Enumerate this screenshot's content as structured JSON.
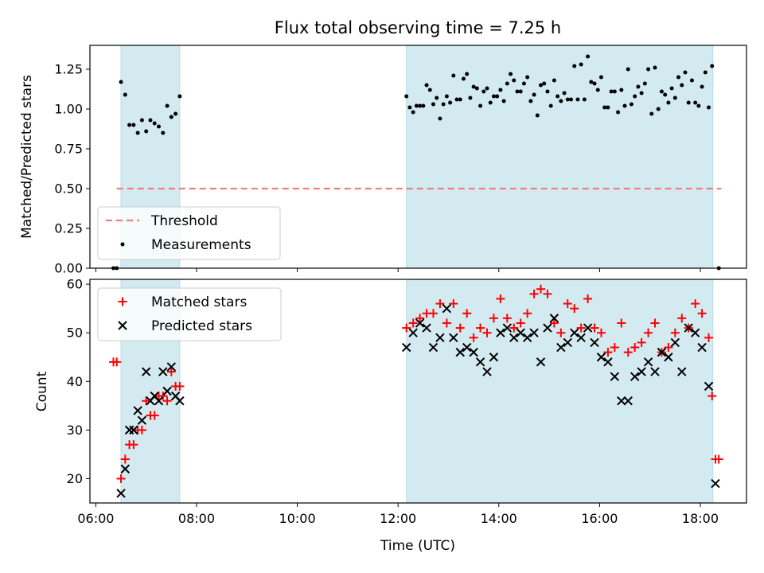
{
  "title": "Flux total observing time = 7.25 h",
  "xlabel": "Time (UTC)",
  "x_ticks": [
    "06:00",
    "08:00",
    "10:00",
    "12:00",
    "14:00",
    "16:00",
    "18:00"
  ],
  "colors": {
    "shade": "#d3eaf1",
    "threshold": "#f08080",
    "measurements": "#000000",
    "matched": "#ff0000",
    "predicted": "#000000"
  },
  "chart_data": [
    {
      "type": "scatter",
      "panel": "top",
      "ylabel": "Matched/Predicted stars",
      "xlim": [
        "05:53",
        "18:55"
      ],
      "ylim": [
        0,
        1.4
      ],
      "y_ticks": [
        "0.00",
        "0.25",
        "0.50",
        "0.75",
        "1.00",
        "1.25"
      ],
      "shaded_intervals": [
        [
          "06:30",
          "07:40"
        ],
        [
          "12:10",
          "18:15"
        ]
      ],
      "threshold": {
        "name": "Threshold",
        "value": 0.5,
        "x_range": [
          "06:25",
          "18:25"
        ]
      },
      "legend": {
        "position": "lower-left",
        "entries": [
          "Threshold",
          "Measurements"
        ]
      },
      "series": [
        {
          "name": "Measurements",
          "marker": "dot",
          "x": [
            "06:21",
            "06:25",
            "06:30",
            "06:35",
            "06:40",
            "06:45",
            "06:50",
            "06:55",
            "07:00",
            "07:05",
            "07:10",
            "07:15",
            "07:20",
            "07:25",
            "07:30",
            "07:35",
            "07:40",
            "12:10",
            "12:14",
            "12:18",
            "12:22",
            "12:26",
            "12:30",
            "12:34",
            "12:38",
            "12:42",
            "12:46",
            "12:50",
            "12:54",
            "12:58",
            "13:02",
            "13:06",
            "13:10",
            "13:14",
            "13:18",
            "13:22",
            "13:26",
            "13:30",
            "13:34",
            "13:38",
            "13:42",
            "13:46",
            "13:50",
            "13:54",
            "13:58",
            "14:02",
            "14:06",
            "14:10",
            "14:14",
            "14:18",
            "14:22",
            "14:26",
            "14:30",
            "14:34",
            "14:38",
            "14:42",
            "14:46",
            "14:50",
            "14:54",
            "14:58",
            "15:02",
            "15:06",
            "15:10",
            "15:14",
            "15:18",
            "15:22",
            "15:26",
            "15:30",
            "15:34",
            "15:38",
            "15:42",
            "15:46",
            "15:50",
            "15:54",
            "15:58",
            "16:02",
            "16:06",
            "16:10",
            "16:14",
            "16:18",
            "16:22",
            "16:26",
            "16:30",
            "16:34",
            "16:38",
            "16:42",
            "16:46",
            "16:50",
            "16:54",
            "16:58",
            "17:02",
            "17:06",
            "17:10",
            "17:14",
            "17:18",
            "17:22",
            "17:26",
            "17:30",
            "17:34",
            "17:38",
            "17:42",
            "17:46",
            "17:50",
            "17:54",
            "17:58",
            "18:02",
            "18:06",
            "18:10",
            "18:14",
            "18:22"
          ],
          "y": [
            0.0,
            0.0,
            1.17,
            1.09,
            0.9,
            0.9,
            0.85,
            0.93,
            0.86,
            0.93,
            0.91,
            0.89,
            0.85,
            1.02,
            0.95,
            0.97,
            1.08,
            1.08,
            1.01,
            0.98,
            1.02,
            1.02,
            1.02,
            1.15,
            1.12,
            1.03,
            1.07,
            0.94,
            1.03,
            1.08,
            1.04,
            1.21,
            1.06,
            1.06,
            1.19,
            1.22,
            1.07,
            1.14,
            1.13,
            1.02,
            1.11,
            1.13,
            1.04,
            1.08,
            1.08,
            1.12,
            1.05,
            1.16,
            1.22,
            1.18,
            1.11,
            1.11,
            1.16,
            1.2,
            1.05,
            1.09,
            0.96,
            1.15,
            1.16,
            1.11,
            1.02,
            1.18,
            1.08,
            1.05,
            1.1,
            1.06,
            1.06,
            1.27,
            1.06,
            1.28,
            1.06,
            1.33,
            1.17,
            1.16,
            1.12,
            1.2,
            1.01,
            1.01,
            1.11,
            1.11,
            0.98,
            1.12,
            1.02,
            1.25,
            1.03,
            1.08,
            1.14,
            1.1,
            1.16,
            1.25,
            0.97,
            1.26,
            1.0,
            1.11,
            1.09,
            1.04,
            1.13,
            1.07,
            1.2,
            1.15,
            1.23,
            1.04,
            1.18,
            1.04,
            1.02,
            1.14,
            1.23,
            1.01,
            1.27,
            0.0
          ]
        }
      ]
    },
    {
      "type": "scatter",
      "panel": "bottom",
      "ylabel": "Count",
      "xlim": [
        "05:53",
        "18:55"
      ],
      "ylim": [
        15,
        61
      ],
      "y_ticks": [
        "20",
        "30",
        "40",
        "50",
        "60"
      ],
      "shaded_intervals": [
        [
          "06:30",
          "07:40"
        ],
        [
          "12:10",
          "18:15"
        ]
      ],
      "legend": {
        "position": "upper-left",
        "entries": [
          "Matched stars",
          "Predicted stars"
        ]
      },
      "series": [
        {
          "name": "Matched stars",
          "marker": "plus",
          "x": [
            "06:21",
            "06:25",
            "06:30",
            "06:35",
            "06:40",
            "06:45",
            "06:50",
            "06:55",
            "07:00",
            "07:05",
            "07:10",
            "07:15",
            "07:20",
            "07:25",
            "07:30",
            "07:35",
            "07:40",
            "12:10",
            "12:18",
            "12:26",
            "12:34",
            "12:42",
            "12:50",
            "12:58",
            "13:06",
            "13:14",
            "13:22",
            "13:30",
            "13:38",
            "13:46",
            "13:54",
            "14:02",
            "14:10",
            "14:18",
            "14:26",
            "14:34",
            "14:42",
            "14:50",
            "14:58",
            "15:06",
            "15:14",
            "15:22",
            "15:30",
            "15:38",
            "15:46",
            "15:54",
            "16:02",
            "16:10",
            "16:18",
            "16:26",
            "16:34",
            "16:42",
            "16:50",
            "16:58",
            "17:06",
            "17:14",
            "17:22",
            "17:30",
            "17:38",
            "17:46",
            "17:54",
            "18:02",
            "18:10",
            "18:14",
            "18:18",
            "18:22"
          ],
          "y": [
            44,
            44,
            20,
            24,
            27,
            27,
            30,
            30,
            36,
            33,
            33,
            37,
            37,
            36,
            42,
            39,
            39,
            51,
            52,
            53,
            54,
            54,
            56,
            52,
            56,
            51,
            54,
            49,
            51,
            50,
            53,
            57,
            53,
            51,
            52,
            54,
            58,
            59,
            58,
            52,
            50,
            56,
            55,
            51,
            57,
            51,
            50,
            46,
            47,
            52,
            46,
            47,
            48,
            50,
            52,
            46,
            47,
            50,
            53,
            51,
            56,
            54,
            49,
            37,
            24,
            24
          ]
        },
        {
          "name": "Predicted stars",
          "marker": "x",
          "x": [
            "06:30",
            "06:35",
            "06:40",
            "06:45",
            "06:50",
            "06:55",
            "07:00",
            "07:05",
            "07:10",
            "07:15",
            "07:20",
            "07:25",
            "07:30",
            "07:35",
            "07:40",
            "12:10",
            "12:18",
            "12:26",
            "12:34",
            "12:42",
            "12:50",
            "12:58",
            "13:06",
            "13:14",
            "13:22",
            "13:30",
            "13:38",
            "13:46",
            "13:54",
            "14:02",
            "14:10",
            "14:18",
            "14:26",
            "14:34",
            "14:42",
            "14:50",
            "14:58",
            "15:06",
            "15:14",
            "15:22",
            "15:30",
            "15:38",
            "15:46",
            "15:54",
            "16:02",
            "16:10",
            "16:18",
            "16:26",
            "16:34",
            "16:42",
            "16:50",
            "16:58",
            "17:06",
            "17:14",
            "17:22",
            "17:30",
            "17:38",
            "17:46",
            "17:54",
            "18:02",
            "18:10",
            "18:18"
          ],
          "y": [
            17,
            22,
            30,
            30,
            34,
            32,
            42,
            36,
            37,
            36,
            42,
            38,
            43,
            37,
            36,
            47,
            50,
            52,
            51,
            47,
            49,
            55,
            49,
            46,
            47,
            46,
            44,
            42,
            45,
            50,
            51,
            49,
            50,
            49,
            50,
            44,
            51,
            53,
            47,
            48,
            50,
            49,
            51,
            48,
            45,
            44,
            41,
            36,
            36,
            41,
            42,
            44,
            42,
            46,
            45,
            48,
            42,
            51,
            50,
            47,
            39,
            19
          ]
        }
      ]
    }
  ]
}
